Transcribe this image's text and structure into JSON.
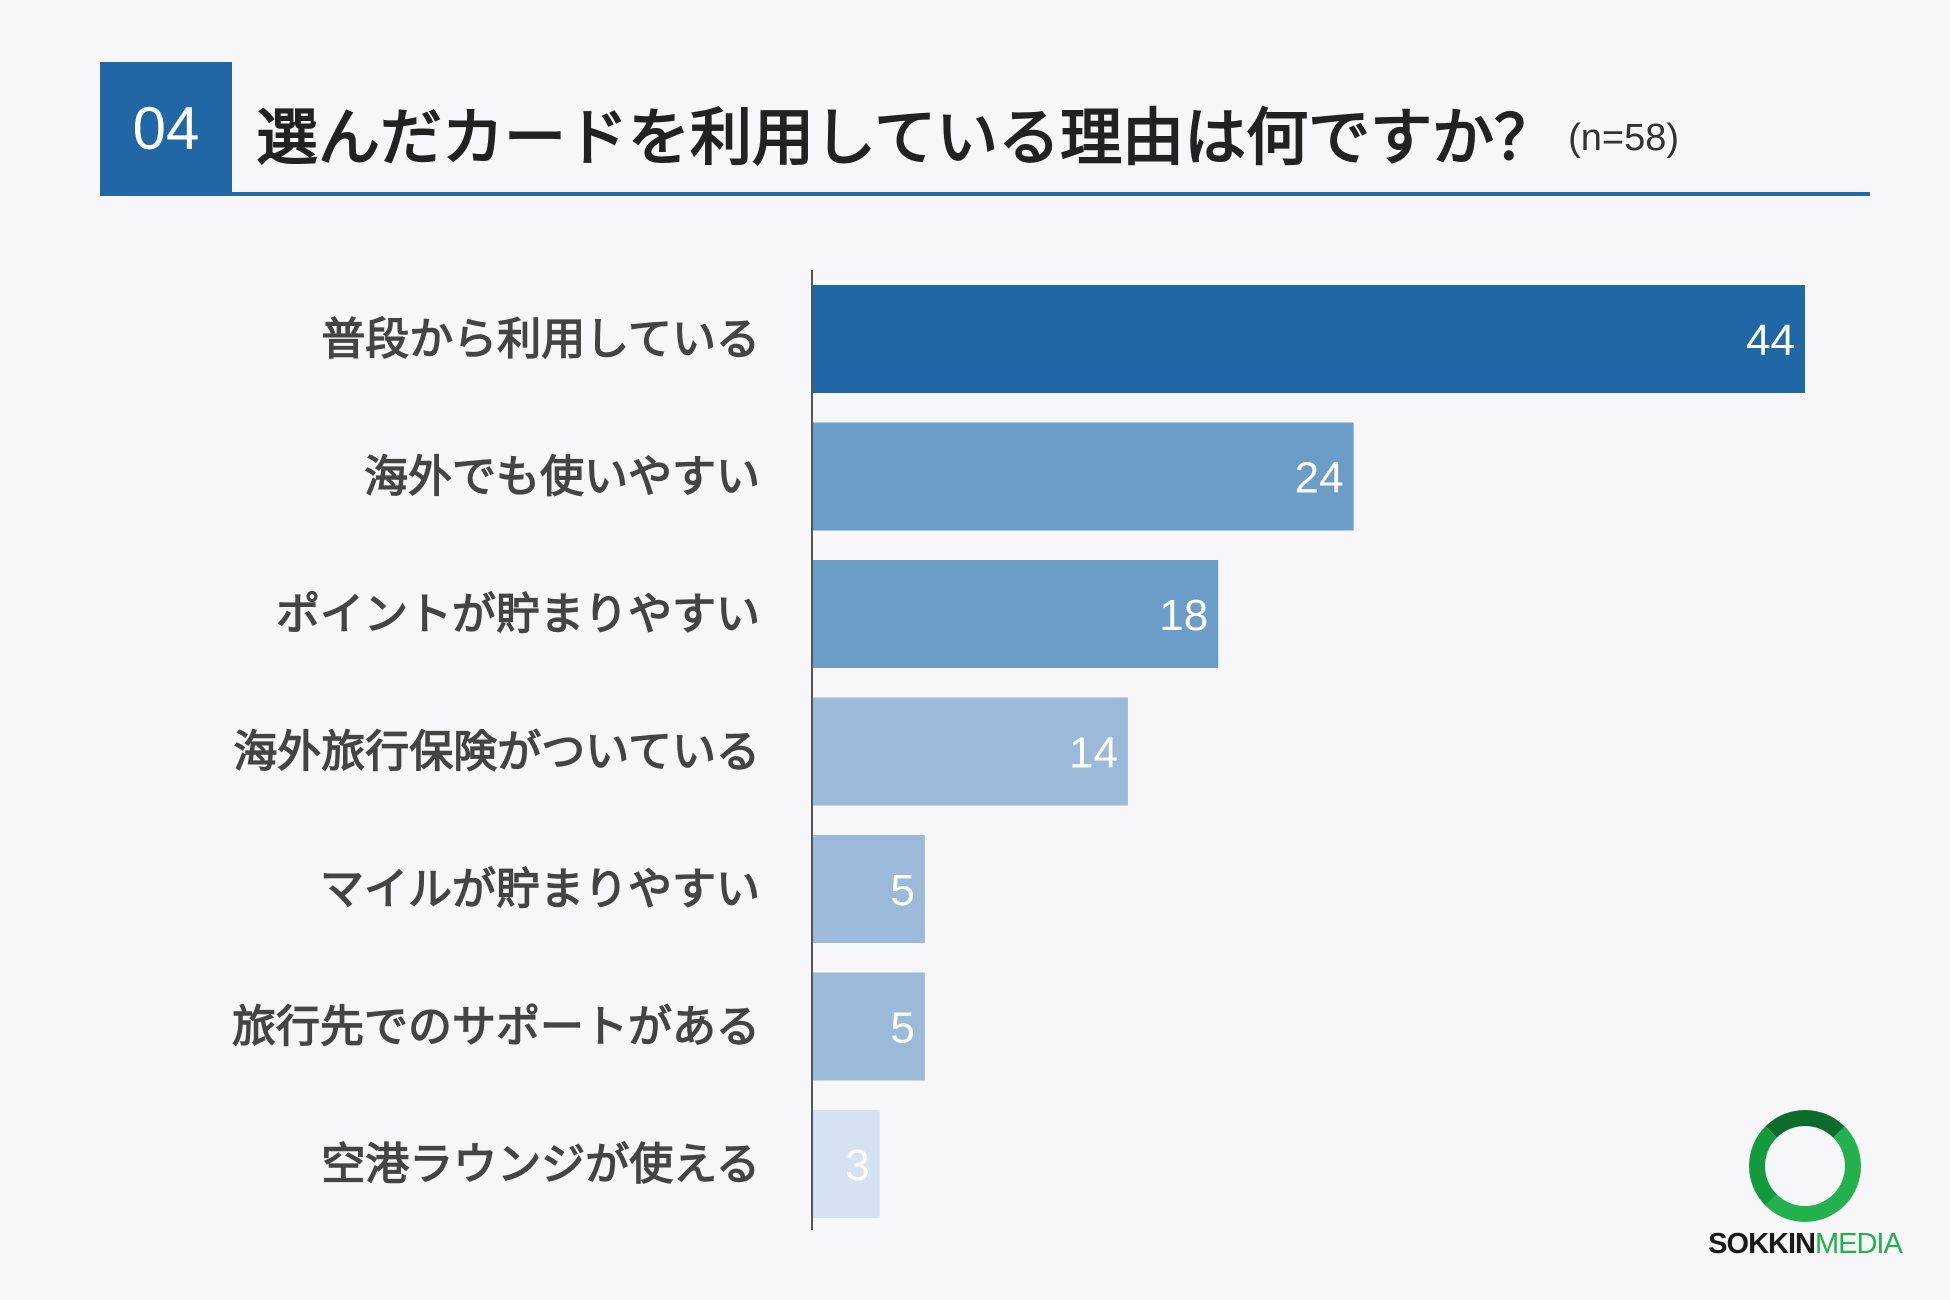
{
  "header": {
    "number": "04",
    "title": "選んだカードを利用している理由は何ですか？",
    "sample": "(n=58)"
  },
  "chart_data": {
    "type": "bar",
    "orientation": "horizontal",
    "categories": [
      "普段から利用している",
      "海外でも使いやすい",
      "ポイントが貯まりやすい",
      "海外旅行保険がついている",
      "マイルが貯まりやすい",
      "旅行先でのサポートがある",
      "空港ラウンジが使える"
    ],
    "values": [
      44,
      24,
      18,
      14,
      5,
      5,
      3
    ],
    "bar_colors": [
      "#2166a5",
      "#6c9dc8",
      "#6c9dc8",
      "#9bbad9",
      "#9bbad9",
      "#9bbad9",
      "#d5e2f1"
    ],
    "xlim": [
      0,
      44
    ],
    "grid": false,
    "legend": "none"
  },
  "logo": {
    "text_bold": "SOKKIN",
    "text_light": "MEDIA",
    "colors": [
      "#0d6b2c",
      "#22b14c"
    ]
  }
}
